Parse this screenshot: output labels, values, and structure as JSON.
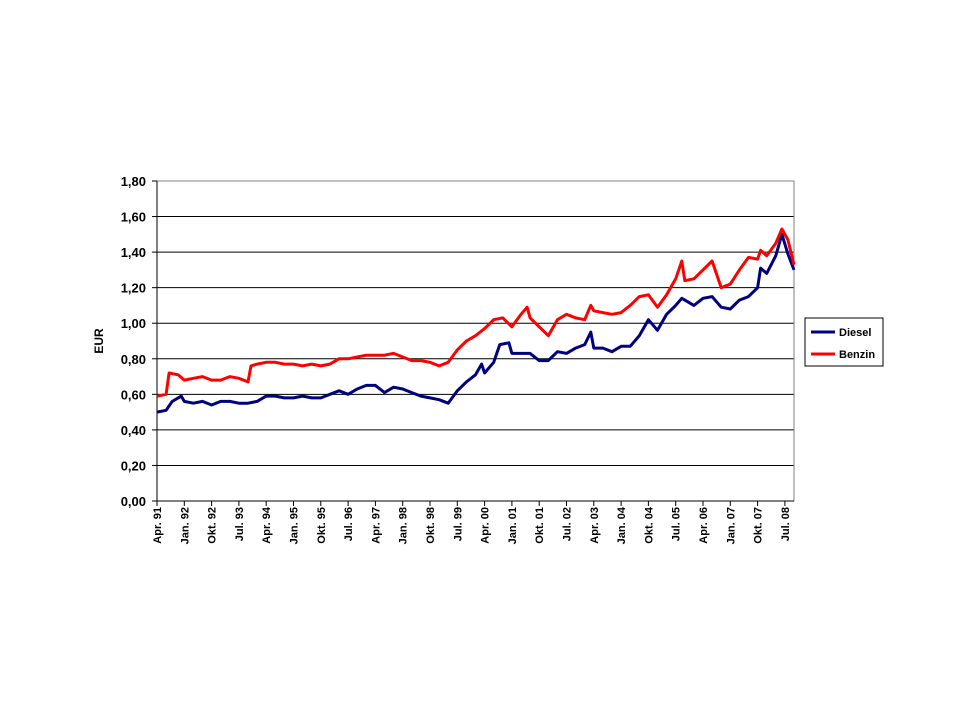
{
  "chart_data": {
    "type": "line",
    "ylabel": "EUR",
    "ylim": [
      0,
      1.8
    ],
    "ytick_step": 0.2,
    "yticks": [
      "0,00",
      "0,20",
      "0,40",
      "0,60",
      "0,80",
      "1,00",
      "1,20",
      "1,40",
      "1,60",
      "1,80"
    ],
    "x_start": "Apr. 91",
    "x_end": "Okt. 08",
    "xticks": [
      "Apr. 91",
      "Jan. 92",
      "Okt. 92",
      "Jul. 93",
      "Apr. 94",
      "Jan. 95",
      "Okt. 95",
      "Jul. 96",
      "Apr. 97",
      "Jan. 98",
      "Okt. 98",
      "Jul. 99",
      "Apr. 00",
      "Jan. 01",
      "Okt. 01",
      "Jul. 02",
      "Apr. 03",
      "Jan. 04",
      "Okt. 04",
      "Jul. 05",
      "Apr. 06",
      "Jan. 07",
      "Okt. 07",
      "Jul. 08"
    ],
    "grid": "horizontal",
    "legend": "right",
    "series": [
      {
        "name": "Diesel",
        "color": "#000080",
        "points": [
          [
            "Apr. 91",
            0.5
          ],
          [
            "Jul. 91",
            0.51
          ],
          [
            "Sep. 91",
            0.56
          ],
          [
            "Dez. 91",
            0.59
          ],
          [
            "Jan. 92",
            0.56
          ],
          [
            "Apr. 92",
            0.55
          ],
          [
            "Jul. 92",
            0.56
          ],
          [
            "Okt. 92",
            0.54
          ],
          [
            "Jan. 93",
            0.56
          ],
          [
            "Apr. 93",
            0.56
          ],
          [
            "Jul. 93",
            0.55
          ],
          [
            "Okt. 93",
            0.55
          ],
          [
            "Jan. 94",
            0.56
          ],
          [
            "Apr. 94",
            0.59
          ],
          [
            "Jul. 94",
            0.59
          ],
          [
            "Okt. 94",
            0.58
          ],
          [
            "Jan. 95",
            0.58
          ],
          [
            "Apr. 95",
            0.59
          ],
          [
            "Jul. 95",
            0.58
          ],
          [
            "Okt. 95",
            0.58
          ],
          [
            "Jan. 96",
            0.6
          ],
          [
            "Apr. 96",
            0.62
          ],
          [
            "Jul. 96",
            0.6
          ],
          [
            "Okt. 96",
            0.63
          ],
          [
            "Jan. 97",
            0.65
          ],
          [
            "Apr. 97",
            0.65
          ],
          [
            "Jul. 97",
            0.61
          ],
          [
            "Okt. 97",
            0.64
          ],
          [
            "Jan. 98",
            0.63
          ],
          [
            "Apr. 98",
            0.61
          ],
          [
            "Jul. 98",
            0.59
          ],
          [
            "Okt. 98",
            0.58
          ],
          [
            "Jan. 99",
            0.57
          ],
          [
            "Apr. 99",
            0.55
          ],
          [
            "Jul. 99",
            0.62
          ],
          [
            "Okt. 99",
            0.67
          ],
          [
            "Jan. 00",
            0.71
          ],
          [
            "Mrz. 00",
            0.77
          ],
          [
            "Apr. 00",
            0.72
          ],
          [
            "Jul. 00",
            0.78
          ],
          [
            "Sep. 00",
            0.88
          ],
          [
            "Dez. 00",
            0.89
          ],
          [
            "Jan. 01",
            0.83
          ],
          [
            "Apr. 01",
            0.83
          ],
          [
            "Jul. 01",
            0.83
          ],
          [
            "Okt. 01",
            0.79
          ],
          [
            "Jan. 02",
            0.79
          ],
          [
            "Apr. 02",
            0.84
          ],
          [
            "Jul. 02",
            0.83
          ],
          [
            "Okt. 02",
            0.86
          ],
          [
            "Jan. 03",
            0.88
          ],
          [
            "Mrz. 03",
            0.95
          ],
          [
            "Apr. 03",
            0.86
          ],
          [
            "Jul. 03",
            0.86
          ],
          [
            "Okt. 03",
            0.84
          ],
          [
            "Jan. 04",
            0.87
          ],
          [
            "Apr. 04",
            0.87
          ],
          [
            "Jul. 04",
            0.93
          ],
          [
            "Okt. 04",
            1.02
          ],
          [
            "Jan. 05",
            0.96
          ],
          [
            "Apr. 05",
            1.05
          ],
          [
            "Jul. 05",
            1.1
          ],
          [
            "Sep. 05",
            1.14
          ],
          [
            "Jan. 06",
            1.1
          ],
          [
            "Apr. 06",
            1.14
          ],
          [
            "Jul. 06",
            1.15
          ],
          [
            "Okt. 06",
            1.09
          ],
          [
            "Jan. 07",
            1.08
          ],
          [
            "Apr. 07",
            1.13
          ],
          [
            "Jul. 07",
            1.15
          ],
          [
            "Okt. 07",
            1.2
          ],
          [
            "Nov. 07",
            1.31
          ],
          [
            "Jan. 08",
            1.28
          ],
          [
            "Apr. 08",
            1.38
          ],
          [
            "Jun. 08",
            1.5
          ],
          [
            "Aug. 08",
            1.39
          ],
          [
            "Okt. 08",
            1.3
          ]
        ]
      },
      {
        "name": "Benzin",
        "color": "#ff0000",
        "points": [
          [
            "Apr. 91",
            0.59
          ],
          [
            "Jul. 91",
            0.6
          ],
          [
            "Aug. 91",
            0.72
          ],
          [
            "Nov. 91",
            0.71
          ],
          [
            "Jan. 92",
            0.68
          ],
          [
            "Apr. 92",
            0.69
          ],
          [
            "Jul. 92",
            0.7
          ],
          [
            "Okt. 92",
            0.68
          ],
          [
            "Jan. 93",
            0.68
          ],
          [
            "Apr. 93",
            0.7
          ],
          [
            "Jul. 93",
            0.69
          ],
          [
            "Okt. 93",
            0.67
          ],
          [
            "Nov. 93",
            0.76
          ],
          [
            "Jan. 94",
            0.77
          ],
          [
            "Apr. 94",
            0.78
          ],
          [
            "Jul. 94",
            0.78
          ],
          [
            "Okt. 94",
            0.77
          ],
          [
            "Jan. 95",
            0.77
          ],
          [
            "Apr. 95",
            0.76
          ],
          [
            "Jul. 95",
            0.77
          ],
          [
            "Okt. 95",
            0.76
          ],
          [
            "Jan. 96",
            0.77
          ],
          [
            "Apr. 96",
            0.8
          ],
          [
            "Jul. 96",
            0.8
          ],
          [
            "Okt. 96",
            0.81
          ],
          [
            "Jan. 97",
            0.82
          ],
          [
            "Apr. 97",
            0.82
          ],
          [
            "Jul. 97",
            0.82
          ],
          [
            "Okt. 97",
            0.83
          ],
          [
            "Jan. 98",
            0.81
          ],
          [
            "Apr. 98",
            0.79
          ],
          [
            "Jul. 98",
            0.79
          ],
          [
            "Okt. 98",
            0.78
          ],
          [
            "Jan. 99",
            0.76
          ],
          [
            "Apr. 99",
            0.78
          ],
          [
            "Jul. 99",
            0.85
          ],
          [
            "Okt. 99",
            0.9
          ],
          [
            "Jan. 00",
            0.93
          ],
          [
            "Apr. 00",
            0.97
          ],
          [
            "Jul. 00",
            1.02
          ],
          [
            "Okt. 00",
            1.03
          ],
          [
            "Jan. 01",
            0.98
          ],
          [
            "Apr. 01",
            1.05
          ],
          [
            "Jun. 01",
            1.09
          ],
          [
            "Jul. 01",
            1.03
          ],
          [
            "Okt. 01",
            0.98
          ],
          [
            "Jan. 02",
            0.93
          ],
          [
            "Apr. 02",
            1.02
          ],
          [
            "Jul. 02",
            1.05
          ],
          [
            "Okt. 02",
            1.03
          ],
          [
            "Jan. 03",
            1.02
          ],
          [
            "Mrz. 03",
            1.1
          ],
          [
            "Apr. 03",
            1.07
          ],
          [
            "Jul. 03",
            1.06
          ],
          [
            "Okt. 03",
            1.05
          ],
          [
            "Jan. 04",
            1.06
          ],
          [
            "Apr. 04",
            1.1
          ],
          [
            "Jul. 04",
            1.15
          ],
          [
            "Okt. 04",
            1.16
          ],
          [
            "Jan. 05",
            1.09
          ],
          [
            "Apr. 05",
            1.16
          ],
          [
            "Jul. 05",
            1.25
          ],
          [
            "Sep. 05",
            1.35
          ],
          [
            "Okt. 05",
            1.24
          ],
          [
            "Jan. 06",
            1.25
          ],
          [
            "Apr. 06",
            1.3
          ],
          [
            "Jul. 06",
            1.35
          ],
          [
            "Okt. 06",
            1.2
          ],
          [
            "Jan. 07",
            1.22
          ],
          [
            "Apr. 07",
            1.3
          ],
          [
            "Jul. 07",
            1.37
          ],
          [
            "Okt. 07",
            1.36
          ],
          [
            "Nov. 07",
            1.41
          ],
          [
            "Jan. 08",
            1.38
          ],
          [
            "Apr. 08",
            1.45
          ],
          [
            "Jun. 08",
            1.53
          ],
          [
            "Aug. 08",
            1.47
          ],
          [
            "Okt. 08",
            1.33
          ]
        ]
      }
    ]
  }
}
